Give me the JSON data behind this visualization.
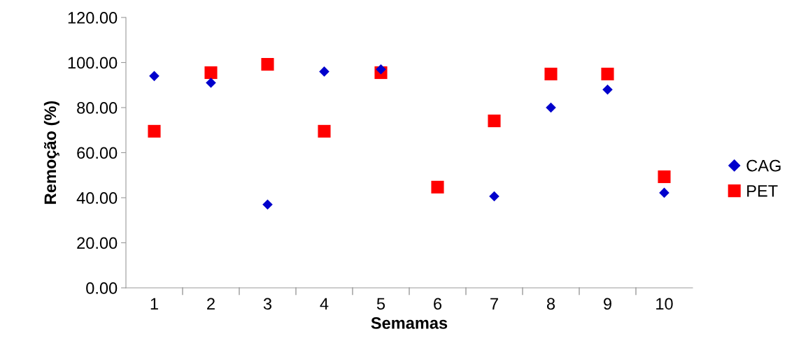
{
  "chart_data": {
    "type": "scatter",
    "xlabel": "Semamas",
    "ylabel": "Remoção (%)",
    "categories": [
      "1",
      "2",
      "3",
      "4",
      "5",
      "6",
      "7",
      "8",
      "9",
      "10"
    ],
    "series": [
      {
        "name": "CAG",
        "color": "#0000cc",
        "marker": "diamond",
        "values": [
          94,
          91,
          37,
          96,
          97,
          null,
          40.6,
          80,
          88,
          42.2
        ]
      },
      {
        "name": "PET",
        "color": "#ff0000",
        "marker": "square",
        "values": [
          69.5,
          95.5,
          99.2,
          69.5,
          95.5,
          44.7,
          74.1,
          94.9,
          94.9,
          49.3
        ]
      }
    ],
    "ylim": [
      0,
      120
    ],
    "yticks": [
      {
        "value": 0,
        "label": "0.00"
      },
      {
        "value": 20,
        "label": "20.00"
      },
      {
        "value": 40,
        "label": "40.00"
      },
      {
        "value": 60,
        "label": "60.00"
      },
      {
        "value": 80,
        "label": "80.00"
      },
      {
        "value": 100,
        "label": "100.00"
      },
      {
        "value": 120,
        "label": "120.00"
      }
    ],
    "grid": false,
    "legend": "right"
  }
}
